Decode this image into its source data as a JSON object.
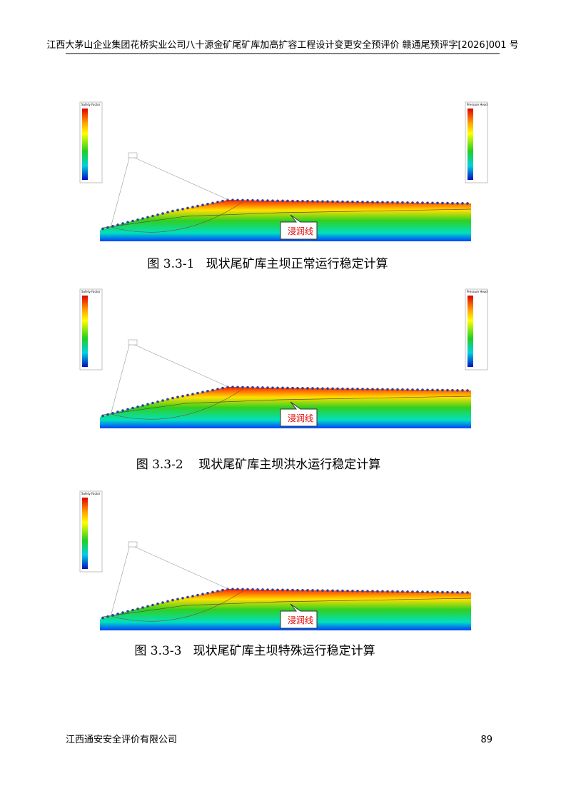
{
  "header": {
    "title": "江西大茅山企业集团花桥实业公司八十源金矿尾矿库加高扩容工程设计变更安全预评价 赣通尾预评字[2026]001 号"
  },
  "figures": [
    {
      "caption": "图 3.3-1   现状尾矿库主坝正常运行稳定计算",
      "label": "浸润线",
      "legends": [
        "Safety Factor",
        "Pressure Head"
      ]
    },
    {
      "caption": "图 3.3-2    现状尾矿库主坝洪水运行稳定计算",
      "label": "浸润线",
      "legends": [
        "Safety Factor",
        "Pressure Head"
      ]
    },
    {
      "caption": "图 3.3-3   现状尾矿库主坝特殊运行稳定计算",
      "label": "浸润线",
      "legends": [
        "Safety Factor"
      ]
    }
  ],
  "footer": {
    "company": "江西通安安全评价有限公司",
    "page": "89"
  }
}
